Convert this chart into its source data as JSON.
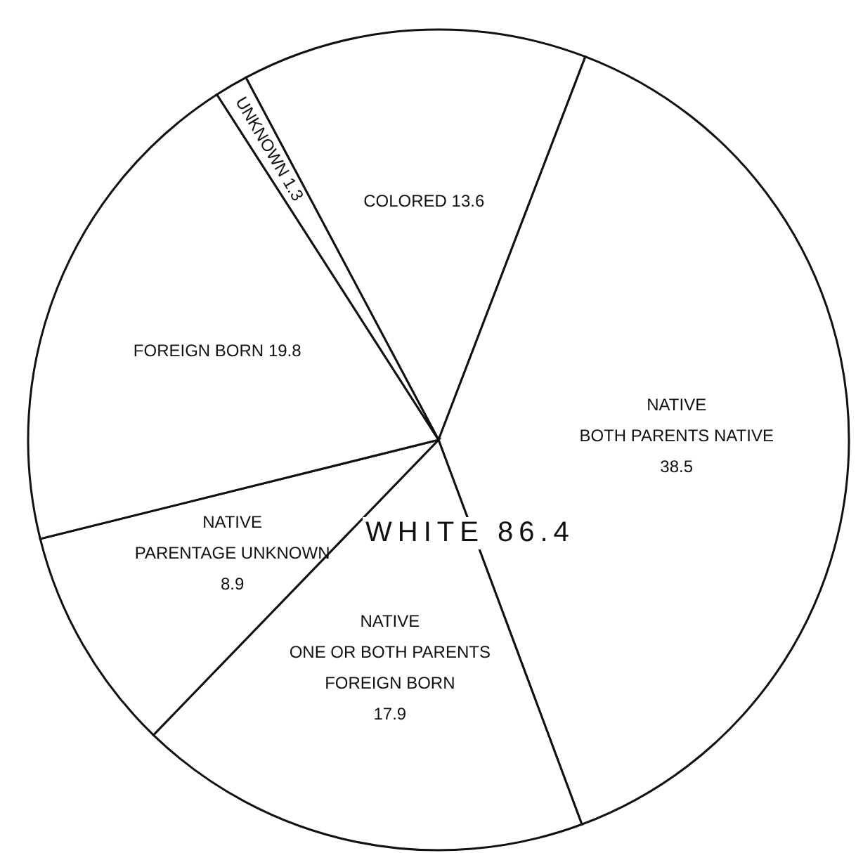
{
  "chart_data": {
    "type": "pie",
    "categories": [
      "COLORED",
      "NATIVE\nBOTH PARENTS NATIVE",
      "NATIVE\nONE OR BOTH PARENTS\nFOREIGN BORN",
      "NATIVE\nPARENTAGE UNKNOWN",
      "FOREIGN BORN",
      "UNKNOWN"
    ],
    "values": [
      13.6,
      38.5,
      17.9,
      8.9,
      19.8,
      1.3
    ],
    "colors": [
      "#ffffff",
      "#ffffff",
      "#ffffff",
      "#ffffff",
      "#ffffff",
      "#ffffff"
    ],
    "data_labels": true,
    "annotations": [
      "WHITE 86.4"
    ]
  }
}
